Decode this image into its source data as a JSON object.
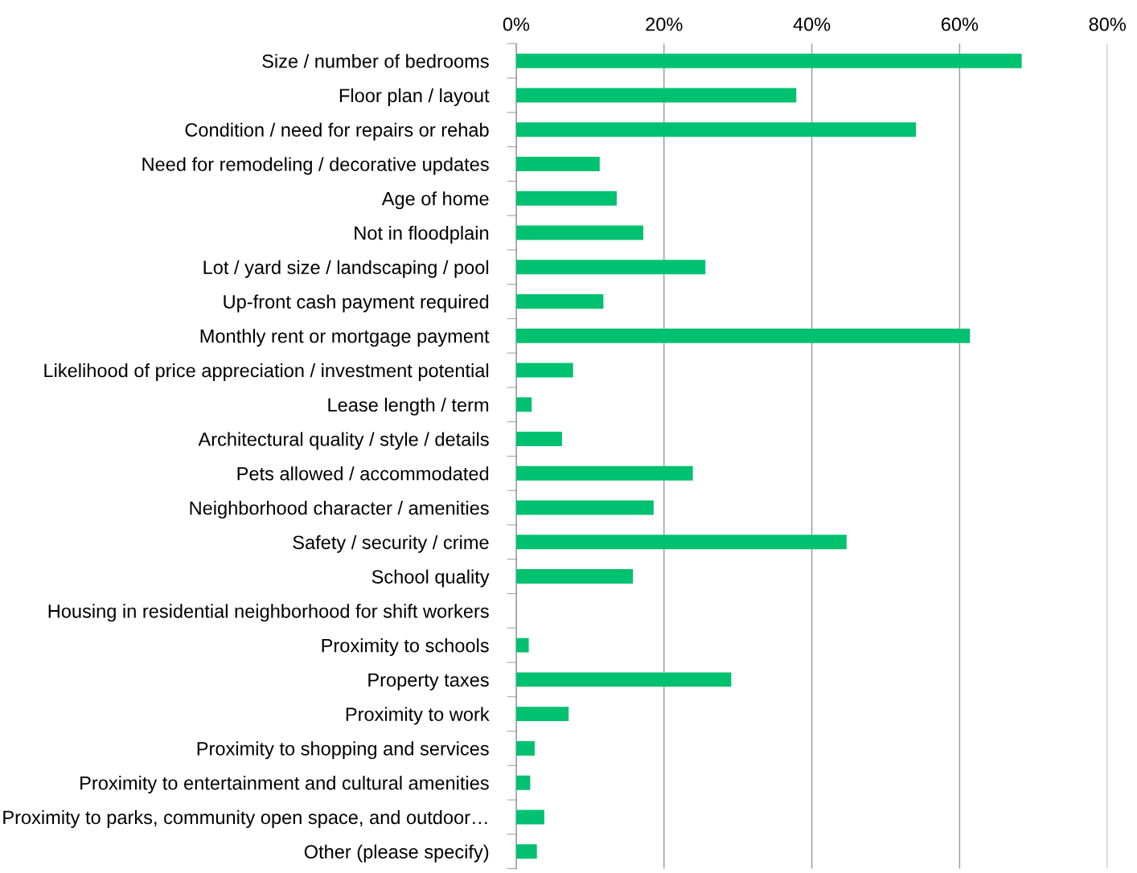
{
  "chart_data": {
    "type": "bar",
    "orientation": "horizontal",
    "categories": [
      "Size / number of bedrooms",
      "Floor plan / layout",
      "Condition / need for repairs or rehab",
      "Need for remodeling / decorative updates",
      "Age of home",
      "Not in floodplain",
      "Lot / yard size / landscaping / pool",
      "Up-front cash payment required",
      "Monthly rent or mortgage payment",
      "Likelihood of price appreciation / investment potential",
      "Lease length / term",
      "Architectural quality / style / details",
      "Pets allowed / accommodated",
      "Neighborhood character / amenities",
      "Safety / security / crime",
      "School quality",
      "Housing in residential neighborhood for shift workers",
      "Proximity to schools",
      "Property taxes",
      "Proximity to work",
      "Proximity to shopping and services",
      "Proximity to entertainment and cultural amenities",
      "Proximity to parks, community open space, and outdoor…",
      "Other (please specify)"
    ],
    "values": [
      68.4,
      37.9,
      54.1,
      11.3,
      13.6,
      17.2,
      25.6,
      11.8,
      61.4,
      7.7,
      2.1,
      6.2,
      23.9,
      18.6,
      44.7,
      15.8,
      0,
      1.7,
      29.1,
      7.1,
      2.5,
      1.9,
      3.8,
      2.8
    ],
    "color": "#00c170",
    "xlim": [
      0,
      80
    ],
    "xticks": [
      {
        "value": 0,
        "label": "0%"
      },
      {
        "value": 20,
        "label": "20%"
      },
      {
        "value": 40,
        "label": "40%"
      },
      {
        "value": 60,
        "label": "60%"
      },
      {
        "value": 80,
        "label": "80%"
      }
    ],
    "grid": "x",
    "legend": false
  }
}
